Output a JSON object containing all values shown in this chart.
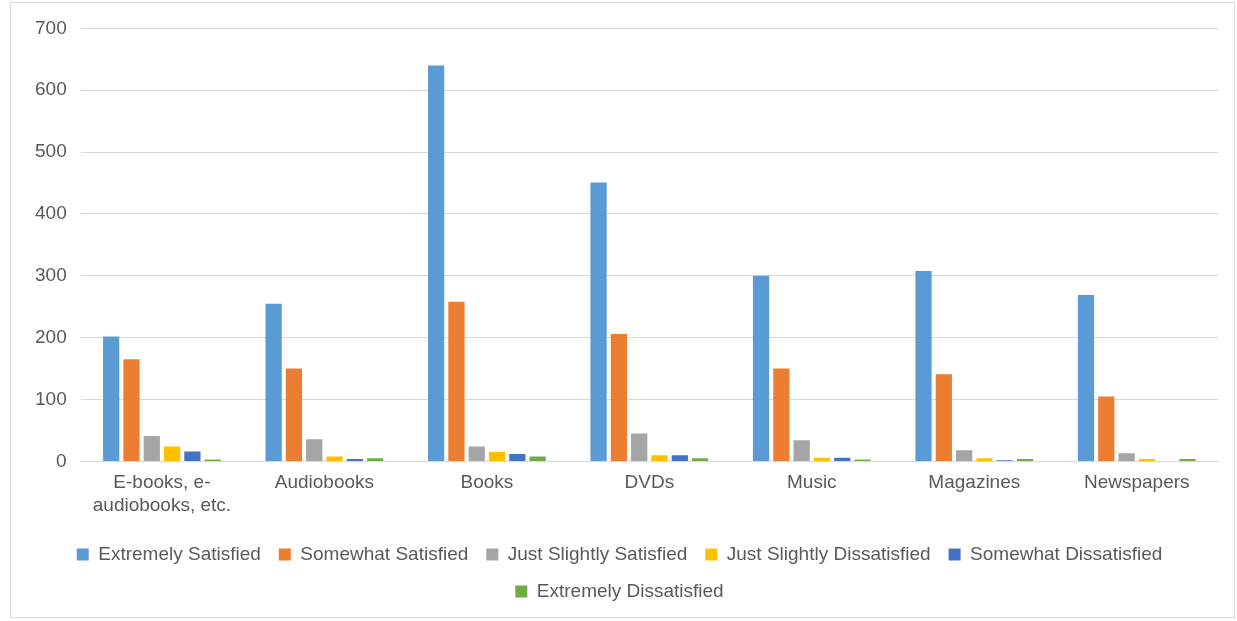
{
  "chart_data": {
    "type": "bar",
    "categories": [
      "E-books, e-audiobooks, etc.",
      "Audiobooks",
      "Books",
      "DVDs",
      "Music",
      "Magazines",
      "Newspapers"
    ],
    "series": [
      {
        "name": "Extremely Satisfied",
        "color": "#5b9bd5",
        "values": [
          202,
          255,
          640,
          451,
          300,
          308,
          269
        ]
      },
      {
        "name": "Somewhat Satisfied",
        "color": "#ed7d31",
        "values": [
          165,
          150,
          258,
          206,
          150,
          141,
          105
        ]
      },
      {
        "name": "Just Slightly Satisfied",
        "color": "#a5a5a5",
        "values": [
          41,
          36,
          24,
          45,
          34,
          18,
          13
        ]
      },
      {
        "name": "Just Slightly Dissatisfied",
        "color": "#ffc000",
        "values": [
          24,
          8,
          15,
          10,
          6,
          5,
          4
        ]
      },
      {
        "name": "Somewhat Dissatisfied",
        "color": "#4472c4",
        "values": [
          16,
          4,
          12,
          10,
          6,
          2,
          null
        ]
      },
      {
        "name": "Extremely Dissatisfied",
        "color": "#70ad47",
        "values": [
          3,
          5,
          8,
          5,
          3,
          4,
          4
        ]
      }
    ],
    "ylim": [
      0,
      700
    ],
    "yticks": [
      0,
      100,
      200,
      300,
      400,
      500,
      600,
      700
    ],
    "grid": "y",
    "legend": "bottom"
  }
}
